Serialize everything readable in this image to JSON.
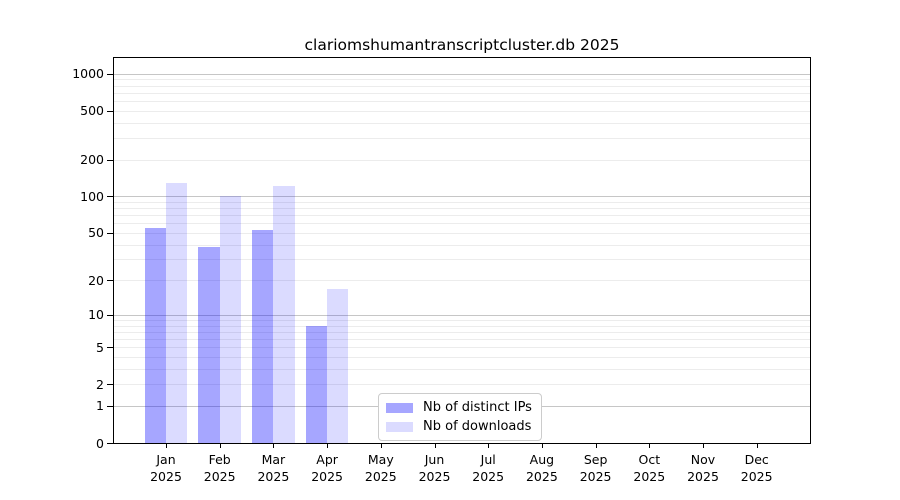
{
  "chart_data": {
    "type": "bar",
    "title": "clariomshumantranscriptcluster.db 2025",
    "categories": [
      "Jan 2025",
      "Feb 2025",
      "Mar 2025",
      "Apr 2025",
      "May 2025",
      "Jun 2025",
      "Jul 2025",
      "Aug 2025",
      "Sep 2025",
      "Oct 2025",
      "Nov 2025",
      "Dec 2025"
    ],
    "series": [
      {
        "name": "Nb of distinct IPs",
        "color": "rgba(0,0,255,0.35)",
        "color_hex": "#a7a7f7",
        "values": [
          55,
          38,
          53,
          8,
          0,
          0,
          0,
          0,
          0,
          0,
          0,
          0
        ]
      },
      {
        "name": "Nb of downloads",
        "color": "rgba(0,0,255,0.14)",
        "color_hex": "#dedefc",
        "values": [
          129,
          100,
          121,
          17,
          0,
          0,
          0,
          0,
          0,
          0,
          0,
          0
        ]
      }
    ],
    "yticks": [
      0,
      1,
      2,
      5,
      10,
      20,
      50,
      100,
      200,
      500,
      1000
    ],
    "yscale": "log1p",
    "ylim": [
      0,
      1340
    ],
    "grid": true,
    "legend_position": "inside lower center",
    "colors": {
      "grid_major": "#c6c6c6",
      "grid_minor": "#ececec",
      "axis": "#000000",
      "background": "#ffffff"
    }
  }
}
